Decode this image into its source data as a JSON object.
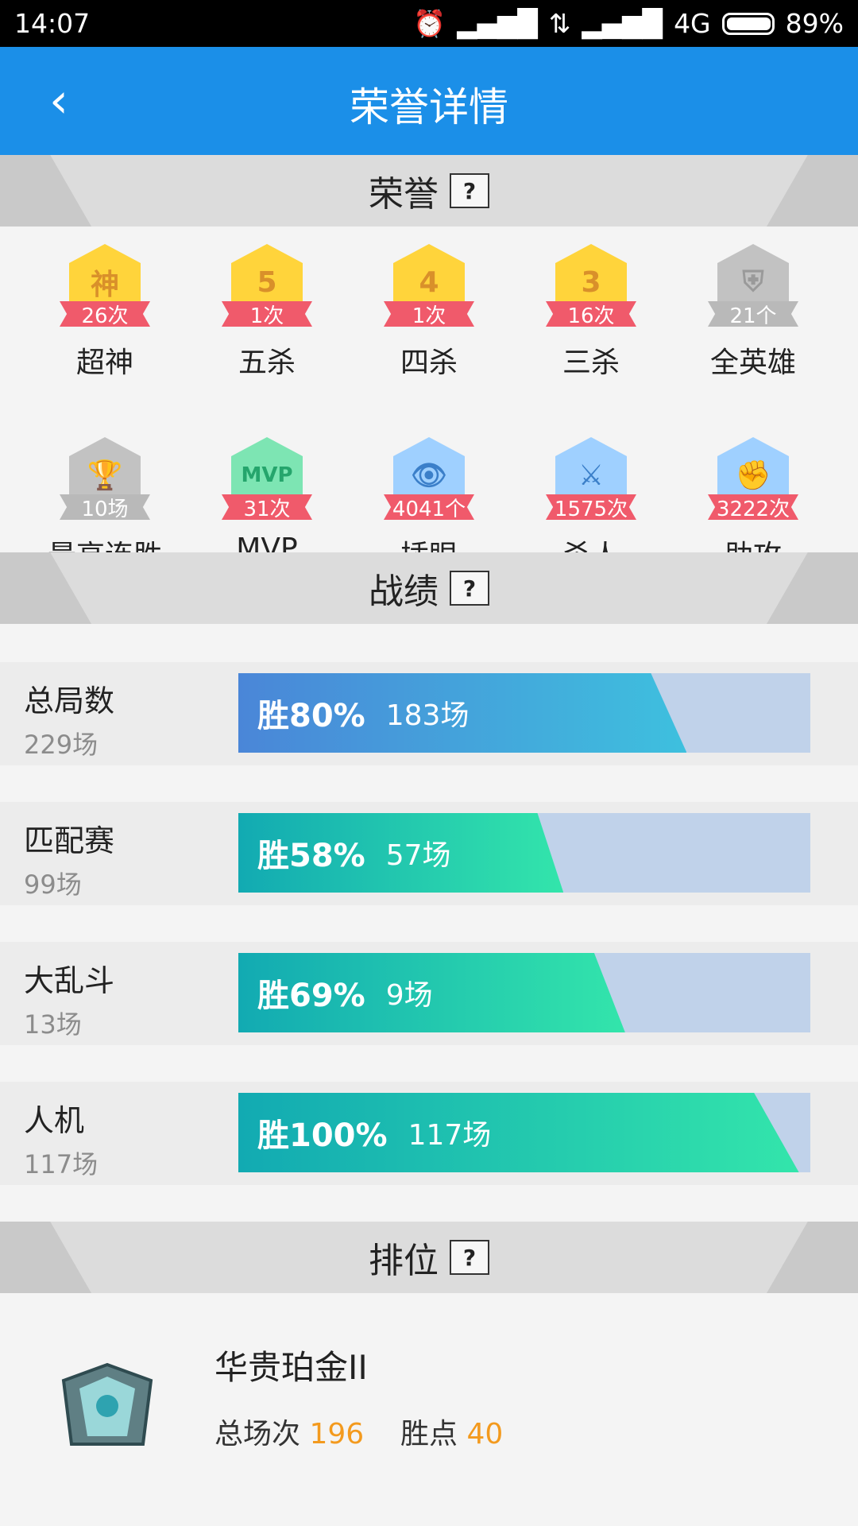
{
  "status": {
    "time": "14:07",
    "network": "4G",
    "battery": "89%"
  },
  "header": {
    "title": "荣誉详情"
  },
  "sections": {
    "honor": "荣誉",
    "record": "战绩",
    "rank": "排位",
    "help": "?"
  },
  "honors": [
    {
      "label": "超神",
      "count": "26次",
      "glyph": "神",
      "style": "gold"
    },
    {
      "label": "五杀",
      "count": "1次",
      "glyph": "5",
      "style": "gold"
    },
    {
      "label": "四杀",
      "count": "1次",
      "glyph": "4",
      "style": "gold"
    },
    {
      "label": "三杀",
      "count": "16次",
      "glyph": "3",
      "style": "gold"
    },
    {
      "label": "全英雄",
      "count": "21个",
      "glyph": "⛨",
      "style": "grey"
    },
    {
      "label": "最高连胜",
      "count": "10场",
      "glyph": "🏆",
      "style": "grey"
    },
    {
      "label": "MVP",
      "count": "31次",
      "glyph": "MVP",
      "style": "green"
    },
    {
      "label": "插眼",
      "count": "4041个",
      "glyph": "👁",
      "style": "blue"
    },
    {
      "label": "杀人",
      "count": "1575次",
      "glyph": "⚔",
      "style": "blue"
    },
    {
      "label": "助攻",
      "count": "3222次",
      "glyph": "✊",
      "style": "blue"
    }
  ],
  "stats": [
    {
      "name": "总局数",
      "total": "229场",
      "win_label": "胜80%",
      "wins": "183场",
      "fraction": 0.8,
      "color": "blue"
    },
    {
      "name": "匹配赛",
      "total": "99场",
      "win_label": "胜58%",
      "wins": "57场",
      "fraction": 0.58,
      "color": "green"
    },
    {
      "name": "大乱斗",
      "total": "13场",
      "win_label": "胜69%",
      "wins": "9场",
      "fraction": 0.69,
      "color": "green"
    },
    {
      "name": "人机",
      "total": "117场",
      "win_label": "胜100%",
      "wins": "117场",
      "fraction": 1.0,
      "color": "green"
    }
  ],
  "rank": {
    "tier": "华贵珀金II",
    "total_label": "总场次",
    "total_value": "196",
    "points_label": "胜点",
    "points_value": "40"
  }
}
